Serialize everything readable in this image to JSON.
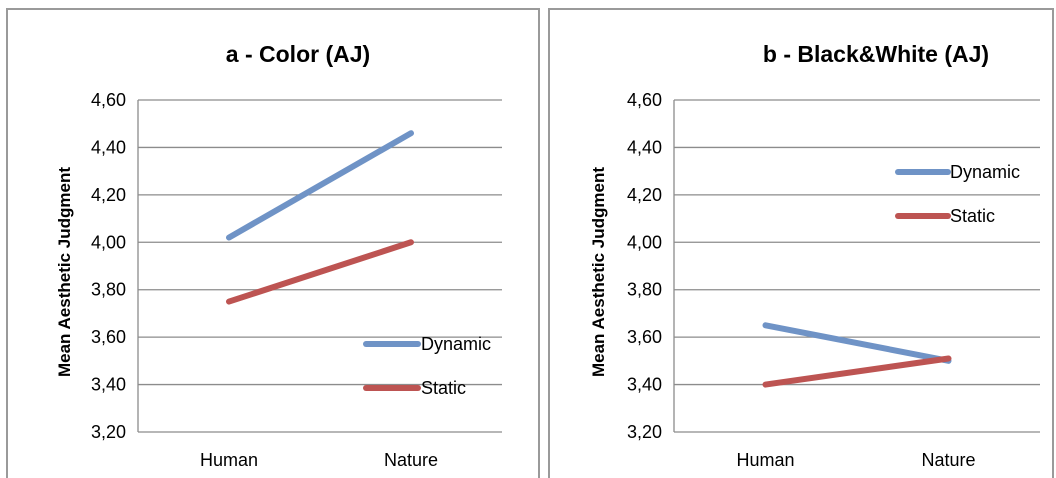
{
  "chart_data": [
    {
      "type": "line",
      "title": "a - Color (AJ)",
      "xlabel": "",
      "ylabel": "Mean Aesthetic Judgment",
      "categories": [
        "Human",
        "Nature"
      ],
      "ylim": [
        3.2,
        4.6
      ],
      "yticks": [
        "3,20",
        "3,40",
        "3,60",
        "3,80",
        "4,00",
        "4,20",
        "4,40",
        "4,60"
      ],
      "grid": true,
      "legend_position": "bottom-right",
      "series": [
        {
          "name": "Dynamic",
          "values": [
            4.02,
            4.46
          ],
          "color": "#6f93c6"
        },
        {
          "name": "Static",
          "values": [
            3.75,
            4.0
          ],
          "color": "#bd5452"
        }
      ]
    },
    {
      "type": "line",
      "title": "b - Black&White (AJ)",
      "xlabel": "",
      "ylabel": "Mean Aesthetic Judgment",
      "categories": [
        "Human",
        "Nature"
      ],
      "ylim": [
        3.2,
        4.6
      ],
      "yticks": [
        "3,20",
        "3,40",
        "3,60",
        "3,80",
        "4,00",
        "4,20",
        "4,40",
        "4,60"
      ],
      "grid": true,
      "legend_position": "top-right",
      "series": [
        {
          "name": "Dynamic",
          "values": [
            3.65,
            3.5
          ],
          "color": "#6f93c6"
        },
        {
          "name": "Static",
          "values": [
            3.4,
            3.51
          ],
          "color": "#bd5452"
        }
      ]
    }
  ]
}
